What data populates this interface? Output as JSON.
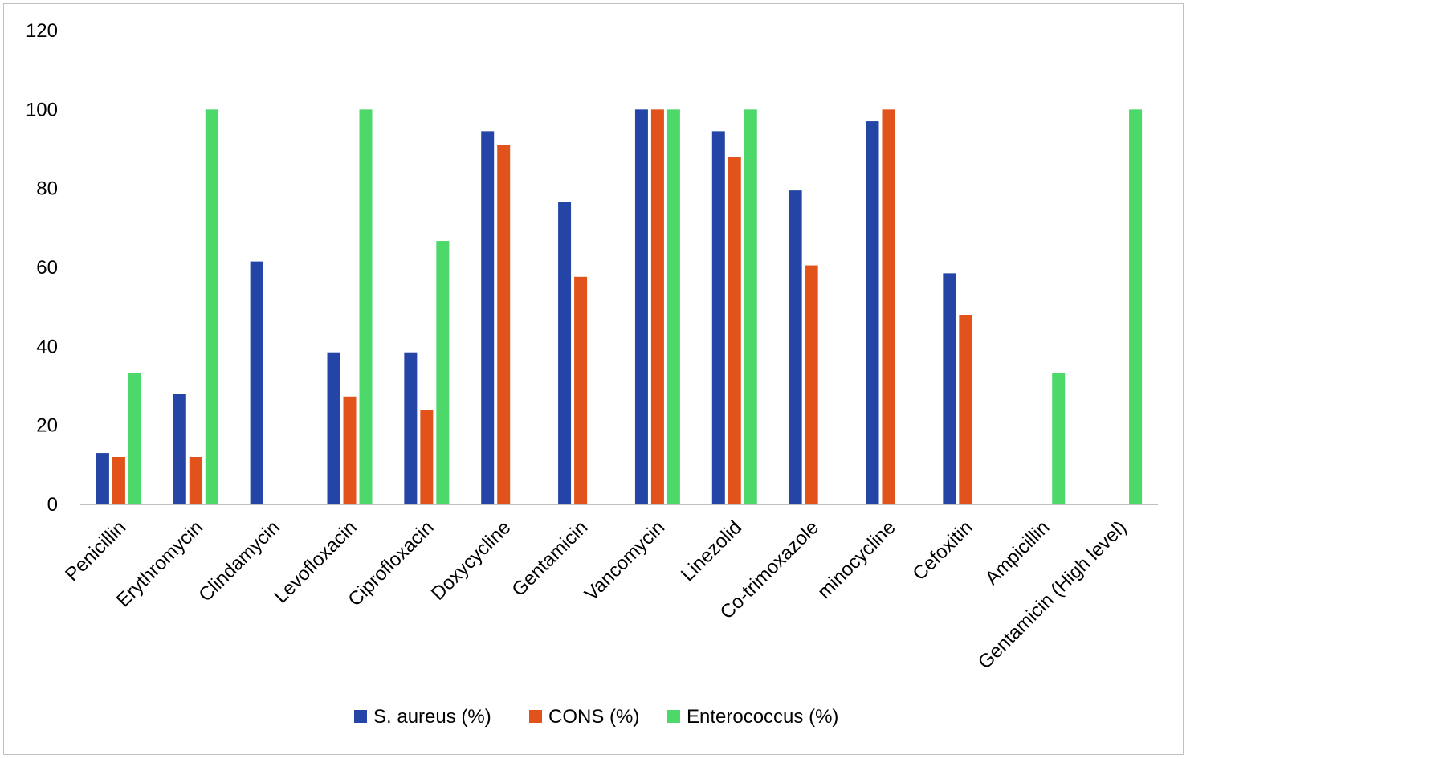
{
  "chart_data": {
    "type": "bar",
    "title": "",
    "xlabel": "",
    "ylabel": "",
    "ylim": [
      0,
      120
    ],
    "yticks": [
      0,
      20,
      40,
      60,
      80,
      100,
      120
    ],
    "grid": false,
    "legend_position": "bottom",
    "categories": [
      "Penicillin",
      "Erythromycin",
      "Clindamycin",
      "Levofloxacin",
      "Ciprofloxacin",
      "Doxycycline",
      "Gentamicin",
      "Vancomycin",
      "Linezolid",
      "Co-trimoxazole",
      "minocycline",
      "Cefoxitin",
      "Ampicillin",
      "Gentamicin (High level)"
    ],
    "series": [
      {
        "name": "S. aureus (%)",
        "color": "#2445A6",
        "values": [
          13,
          28,
          61.5,
          38.5,
          38.5,
          94.5,
          76.5,
          100,
          94.5,
          79.5,
          97,
          58.5,
          null,
          null
        ]
      },
      {
        "name": "CONS (%)",
        "color": "#E2531B",
        "values": [
          12,
          12,
          null,
          27.3,
          24,
          91,
          57.6,
          100,
          88,
          60.5,
          100,
          48,
          null,
          null
        ]
      },
      {
        "name": "Enterococcus (%)",
        "color": "#4CD96A",
        "values": [
          33.3,
          100,
          null,
          100,
          66.7,
          null,
          null,
          100,
          100,
          null,
          null,
          null,
          33.3,
          100
        ]
      }
    ]
  }
}
